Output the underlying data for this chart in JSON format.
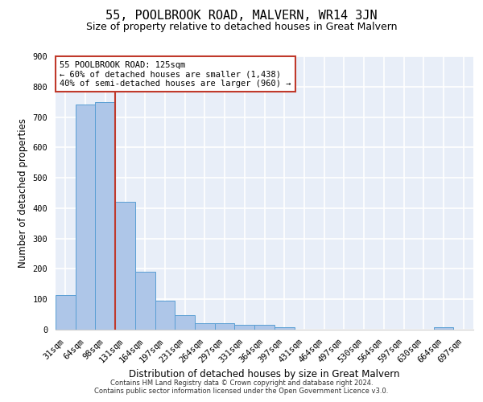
{
  "title": "55, POOLBROOK ROAD, MALVERN, WR14 3JN",
  "subtitle": "Size of property relative to detached houses in Great Malvern",
  "xlabel": "Distribution of detached houses by size in Great Malvern",
  "ylabel": "Number of detached properties",
  "bar_labels": [
    "31sqm",
    "64sqm",
    "98sqm",
    "131sqm",
    "164sqm",
    "197sqm",
    "231sqm",
    "264sqm",
    "297sqm",
    "331sqm",
    "364sqm",
    "397sqm",
    "431sqm",
    "464sqm",
    "497sqm",
    "530sqm",
    "564sqm",
    "597sqm",
    "630sqm",
    "664sqm",
    "697sqm"
  ],
  "bar_values": [
    113,
    742,
    748,
    420,
    190,
    96,
    47,
    22,
    22,
    17,
    17,
    8,
    0,
    0,
    0,
    0,
    0,
    0,
    0,
    8,
    0
  ],
  "bar_color": "#aec6e8",
  "bar_edge_color": "#5a9fd4",
  "ylim": [
    0,
    900
  ],
  "yticks": [
    0,
    100,
    200,
    300,
    400,
    500,
    600,
    700,
    800,
    900
  ],
  "vline_color": "#c0392b",
  "annotation_line1": "55 POOLBROOK ROAD: 125sqm",
  "annotation_line2": "← 60% of detached houses are smaller (1,438)",
  "annotation_line3": "40% of semi-detached houses are larger (960) →",
  "annotation_box_color": "#ffffff",
  "annotation_box_edge": "#c0392b",
  "footer1": "Contains HM Land Registry data © Crown copyright and database right 2024.",
  "footer2": "Contains public sector information licensed under the Open Government Licence v3.0.",
  "background_color": "#e8eef8",
  "grid_color": "#ffffff",
  "title_fontsize": 11,
  "subtitle_fontsize": 9,
  "tick_fontsize": 7.5,
  "ylabel_fontsize": 8.5,
  "xlabel_fontsize": 8.5
}
